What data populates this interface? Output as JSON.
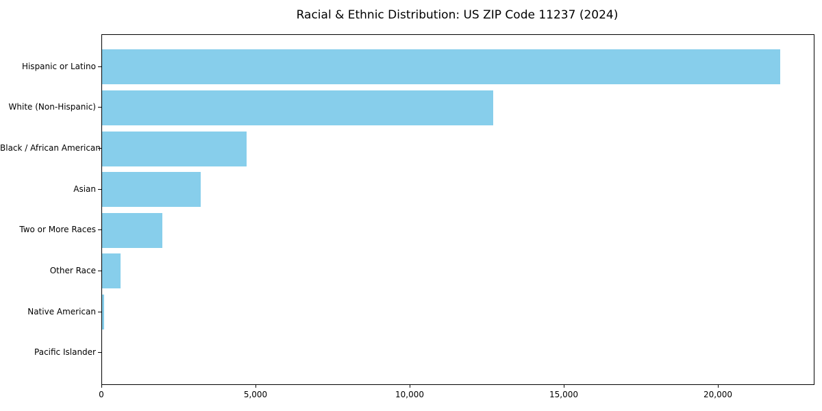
{
  "chart_data": {
    "type": "bar",
    "orientation": "horizontal",
    "title": "Racial & Ethnic Distribution: US ZIP Code 11237 (2024)",
    "categories": [
      "Hispanic or Latino",
      "White (Non-Hispanic)",
      "Black / African American",
      "Asian",
      "Two or More Races",
      "Other Race",
      "Native American",
      "Pacific Islander"
    ],
    "values": [
      22000,
      12700,
      4700,
      3200,
      1950,
      600,
      70,
      0
    ],
    "xlabel": "",
    "ylabel": "",
    "xlim": [
      0,
      23100
    ],
    "xticks": [
      0,
      5000,
      10000,
      15000,
      20000
    ],
    "xtick_labels": [
      "0",
      "5,000",
      "10,000",
      "15,000",
      "20,000"
    ],
    "grid": false,
    "legend_position": "none",
    "bar_color": "#87CEEB",
    "axis_color": "#000000",
    "text_color": "#000000",
    "background_color": "#ffffff"
  }
}
